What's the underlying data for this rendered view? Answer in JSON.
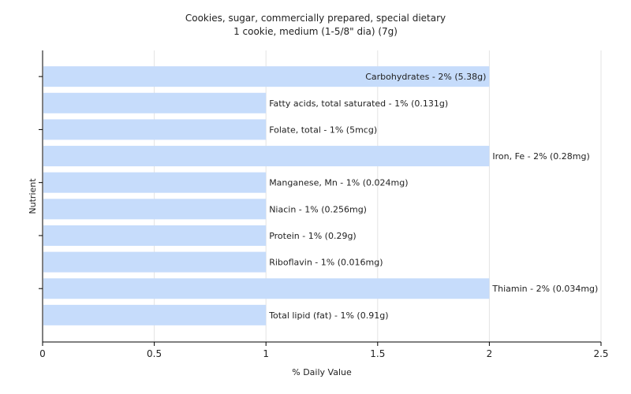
{
  "chart_data": {
    "type": "bar",
    "orientation": "horizontal",
    "title": "Cookies, sugar, commercially prepared, special dietary",
    "subtitle": "1 cookie, medium (1-5/8\" dia) (7g)",
    "xlabel": "% Daily Value",
    "ylabel": "Nutrient",
    "xlim": [
      0,
      2.5
    ],
    "xticks": [
      "0",
      "0.5",
      "1",
      "1.5",
      "2",
      "2.5"
    ],
    "grid": true,
    "categories": [
      "Carbohydrates",
      "Fatty acids, total saturated",
      "Folate, total",
      "Iron, Fe",
      "Manganese, Mn",
      "Niacin",
      "Protein",
      "Riboflavin",
      "Thiamin",
      "Total lipid (fat)"
    ],
    "values": [
      2,
      1,
      1,
      2,
      1,
      1,
      1,
      1,
      2,
      1
    ],
    "labels": [
      "Carbohydrates - 2% (5.38g)",
      "Fatty acids, total saturated - 1% (0.131g)",
      "Folate, total - 1% (5mcg)",
      "Iron, Fe - 2% (0.28mg)",
      "Manganese, Mn - 1% (0.024mg)",
      "Niacin - 1% (0.256mg)",
      "Protein - 1% (0.29g)",
      "Riboflavin - 1% (0.016mg)",
      "Thiamin - 2% (0.034mg)",
      "Total lipid (fat) - 1% (0.91g)"
    ],
    "colors": {
      "bar": "#c6dcfb",
      "grid": "#e3e3e3",
      "axis": "#000000"
    }
  }
}
